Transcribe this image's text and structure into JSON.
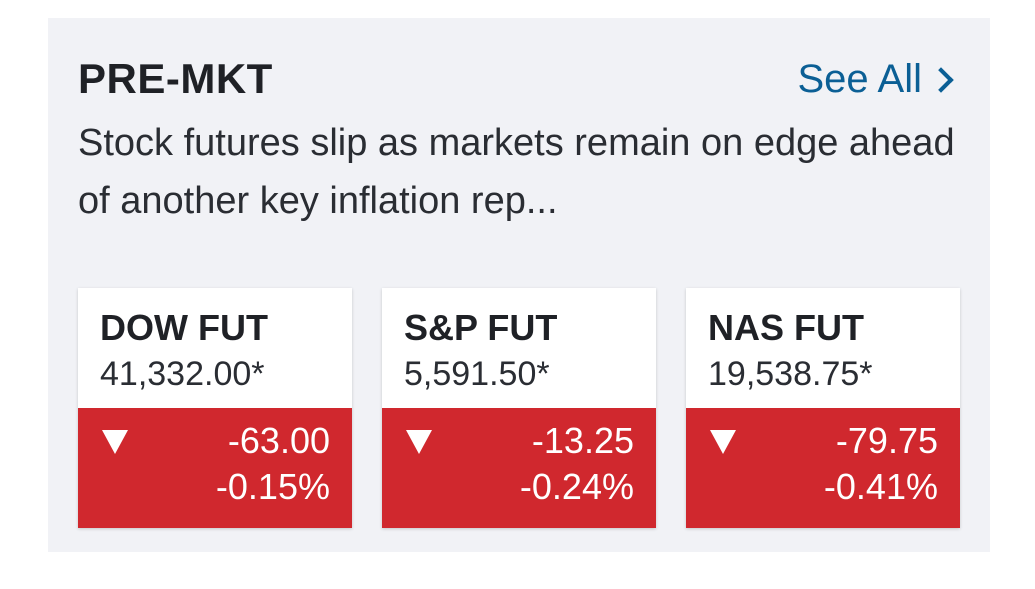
{
  "header": {
    "title": "PRE-MKT",
    "see_all_label": "See All"
  },
  "headline": "Stock futures slip as markets remain on edge ahead of another key inflation rep...",
  "colors": {
    "link": "#0b5f95",
    "negative": "#d0282e",
    "panel_bg": "#f1f2f6"
  },
  "futures": [
    {
      "name": "DOW FUT",
      "price": "41,332.00*",
      "change": "-63.00",
      "change_pct": "-0.15%",
      "direction_icon": "down-triangle-icon"
    },
    {
      "name": "S&P FUT",
      "price": "5,591.50*",
      "change": "-13.25",
      "change_pct": "-0.24%",
      "direction_icon": "down-triangle-icon"
    },
    {
      "name": "NAS FUT",
      "price": "19,538.75*",
      "change": "-79.75",
      "change_pct": "-0.41%",
      "direction_icon": "down-triangle-icon"
    }
  ]
}
